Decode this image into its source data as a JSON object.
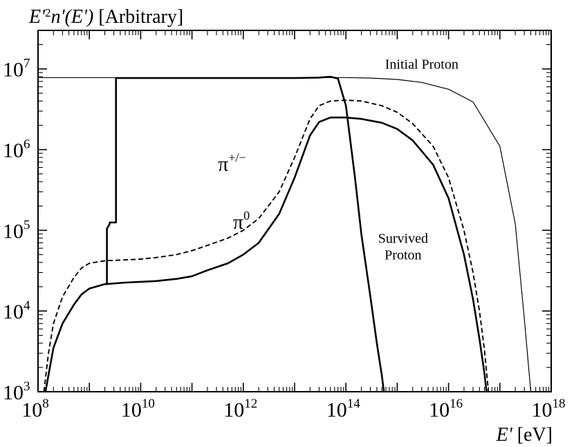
{
  "chart_data": {
    "type": "line",
    "title": "E'^2 n'(E') [Arbitrary]",
    "title_parts": {
      "e": "E'",
      "exp": "2",
      "mid": "n'(E')",
      "unit": " [Arbitrary]"
    },
    "xlabel": "E' [eV]",
    "xlabel_parts": {
      "var": "E'",
      "unit": " [eV]"
    },
    "ylabel": "",
    "x_scale": "log",
    "y_scale": "log",
    "xlim": [
      100000000.0,
      1e+18
    ],
    "ylim": [
      1000.0,
      30000000.0
    ],
    "x_ticks": [
      {
        "value": 100000000.0,
        "base": "10",
        "exp": "8"
      },
      {
        "value": 10000000000.0,
        "base": "10",
        "exp": "10"
      },
      {
        "value": 1000000000000.0,
        "base": "10",
        "exp": "12"
      },
      {
        "value": 100000000000000.0,
        "base": "10",
        "exp": "14"
      },
      {
        "value": 1e+16,
        "base": "10",
        "exp": "16"
      },
      {
        "value": 1e+18,
        "base": "10",
        "exp": "18"
      }
    ],
    "y_ticks": [
      {
        "value": 1000.0,
        "base": "10",
        "exp": "3"
      },
      {
        "value": 10000.0,
        "base": "10",
        "exp": "4"
      },
      {
        "value": 100000.0,
        "base": "10",
        "exp": "5"
      },
      {
        "value": 1000000.0,
        "base": "10",
        "exp": "6"
      },
      {
        "value": 10000000.0,
        "base": "10",
        "exp": "7"
      }
    ],
    "grid": false,
    "series": [
      {
        "name": "Initial Proton",
        "style": "thin",
        "x": [
          100000000.0,
          1000000000.0,
          10000000000.0,
          100000000000.0,
          1000000000000.0,
          10000000000000.0,
          100000000000000.0,
          300000000000000.0,
          1000000000000000.0,
          3000000000000000.0,
          1e+16,
          3e+16,
          1e+17,
          2e+17,
          3e+17,
          4e+17
        ],
        "y": [
          7800000.0,
          7800000.0,
          7800000.0,
          7800000.0,
          7800000.0,
          7800000.0,
          7800000.0,
          7700000.0,
          7400000.0,
          6800000.0,
          5600000.0,
          3900000.0,
          1100000.0,
          120000.0,
          8000.0,
          1000.0
        ]
      },
      {
        "name": "Survived Proton",
        "style": "thick",
        "x": [
          2200000000.0,
          2200000000.0,
          2500000000.0,
          2500000000.0,
          3300000000.0,
          3300000000.0,
          10000000000.0,
          100000000000.0,
          1000000000000.0,
          10000000000000.0,
          30000000000000.0,
          50000000000000.0,
          70000000000000.0,
          100000000000000.0,
          150000000000000.0,
          200000000000000.0,
          300000000000000.0,
          400000000000000.0,
          500000000000000.0,
          550000000000000.0
        ],
        "y": [
          21000.0,
          105000.0,
          120000.0,
          125000.0,
          125000.0,
          7700000.0,
          7700000.0,
          7700000.0,
          7700000.0,
          7700000.0,
          7800000.0,
          8000000.0,
          7600000.0,
          3500000.0,
          450000.0,
          90000.0,
          15000.0,
          4000.0,
          1600.0,
          1000.0
        ]
      },
      {
        "name": "π+/−",
        "style": "dashed",
        "x": [
          130000000.0,
          160000000.0,
          200000000.0,
          300000000.0,
          500000000.0,
          700000000.0,
          1000000000.0,
          2000000000.0,
          5000000000.0,
          10000000000.0,
          20000000000.0,
          50000000000.0,
          100000000000.0,
          200000000000.0,
          500000000000.0,
          1000000000000.0,
          2000000000000.0,
          5000000000000.0,
          10000000000000.0,
          20000000000000.0,
          30000000000000.0,
          50000000000000.0,
          100000000000000.0,
          200000000000000.0,
          500000000000000.0,
          1000000000000000.0,
          2000000000000000.0,
          5000000000000000.0,
          1e+16,
          2e+16,
          3e+16,
          4e+16,
          5e+16,
          6e+16
        ],
        "y": [
          1000.0,
          3000.0,
          7000.0,
          15000.0,
          26000.0,
          34000.0,
          39000.0,
          42000.0,
          43000.0,
          44000.0,
          46000.0,
          50000.0,
          56000.0,
          65000.0,
          80000.0,
          100000.0,
          140000.0,
          300000.0,
          800000.0,
          2400000.0,
          3500000.0,
          4000000.0,
          4100000.0,
          4000000.0,
          3500000.0,
          2900000.0,
          2100000.0,
          1100000.0,
          450000.0,
          100000.0,
          30000.0,
          10000.0,
          3300.0,
          1000.0
        ]
      },
      {
        "name": "π0",
        "style": "thick",
        "x": [
          140000000.0,
          170000000.0,
          200000000.0,
          300000000.0,
          500000000.0,
          700000000.0,
          1000000000.0,
          2000000000.0,
          5000000000.0,
          10000000000.0,
          20000000000.0,
          50000000000.0,
          100000000000.0,
          200000000000.0,
          500000000000.0,
          1000000000000.0,
          2000000000000.0,
          5000000000000.0,
          10000000000000.0,
          20000000000000.0,
          30000000000000.0,
          50000000000000.0,
          100000000000000.0,
          200000000000000.0,
          500000000000000.0,
          1000000000000000.0,
          2000000000000000.0,
          5000000000000000.0,
          1e+16,
          2e+16,
          3e+16,
          4e+16,
          5e+16,
          5.5e+16
        ],
        "y": [
          1000.0,
          2000.0,
          3500.0,
          7000.0,
          12000.0,
          16000.0,
          19000.0,
          21500.0,
          22500.0,
          23000.0,
          23500.0,
          25000.0,
          27000.0,
          32000.0,
          39000.0,
          50000.0,
          70000.0,
          160000.0,
          450000.0,
          1500000.0,
          2200000.0,
          2500000.0,
          2500000.0,
          2400000.0,
          2150000.0,
          1800000.0,
          1300000.0,
          650000.0,
          250000.0,
          50000.0,
          14000.0,
          4500.0,
          1700.0,
          1000.0
        ]
      }
    ],
    "annotations": [
      {
        "name": "initial-proton-label",
        "lines": [
          "Initial Proton"
        ],
        "x": 3000000000000000.0,
        "y": 10000000.0,
        "anchor": "middle"
      },
      {
        "name": "survived-proton-label",
        "lines": [
          "Survived",
          "Proton"
        ],
        "x": 1300000000000000.0,
        "y": 70000.0,
        "anchor": "middle"
      },
      {
        "name": "pi-charged-label",
        "base": "π",
        "sup": "+/−",
        "x": 320000000000.0,
        "y": 550000.0,
        "anchor": "start"
      },
      {
        "name": "pi-neutral-label",
        "base": "π",
        "sup": "0",
        "x": 630000000000.0,
        "y": 105000.0,
        "anchor": "start"
      }
    ]
  }
}
